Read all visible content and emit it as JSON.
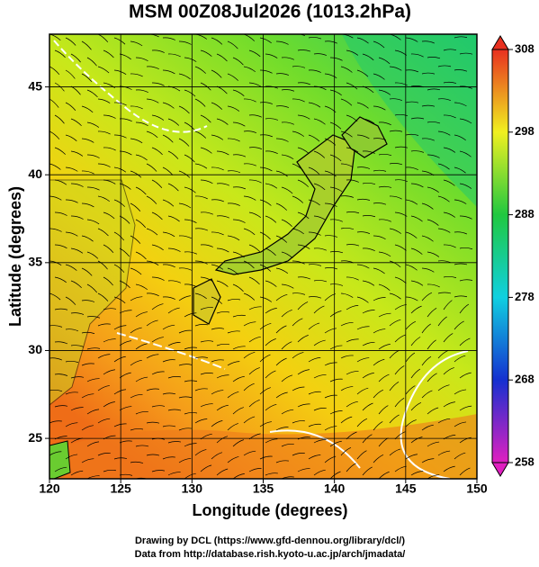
{
  "title": "MSM 00Z08Jul2026 (1013.2hPa)",
  "x_axis": {
    "label": "Longitude (degrees)",
    "lim": [
      120,
      150
    ],
    "ticks": [
      120,
      125,
      130,
      135,
      140,
      145,
      150
    ]
  },
  "y_axis": {
    "label": "Latitude  (degrees)",
    "lim": [
      22.7,
      48
    ],
    "ticks": [
      25,
      30,
      35,
      40,
      45
    ]
  },
  "colorbar": {
    "lim": [
      258,
      308
    ],
    "ticks": [
      258,
      268,
      278,
      288,
      298,
      308
    ]
  },
  "footer": [
    "Drawing by DCL (https://www.gfd-dennou.org/library/dcl/)",
    "Data from http://database.rish.kyoto-u.ac.jp/arch/jmadata/"
  ]
}
